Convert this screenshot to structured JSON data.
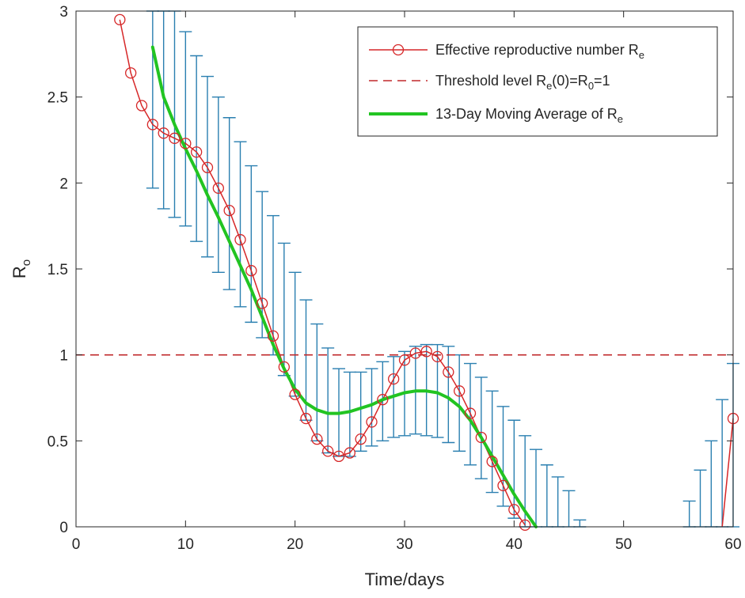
{
  "chart_data": {
    "type": "line",
    "xlabel": "Time/days",
    "ylabel": {
      "main": "R",
      "sub": "o"
    },
    "xlim": [
      0,
      60
    ],
    "ylim": [
      0,
      3
    ],
    "xticks": [
      0,
      10,
      20,
      30,
      40,
      50,
      60
    ],
    "yticks": [
      0,
      0.5,
      1,
      1.5,
      2,
      2.5,
      3
    ],
    "grid": false,
    "legend_position": "top-right",
    "legend": [
      {
        "pre": "Effective reproductive number R",
        "sub": "e"
      },
      {
        "pre": "Threshold level R",
        "sub": "e",
        "mid": "(0)=R",
        "sub2": "0",
        "post": "=1"
      },
      {
        "pre": "13-Day Moving Average of R",
        "sub": "e"
      }
    ],
    "colors": {
      "re": "#d62728",
      "threshold": "#c0292b",
      "moving_avg": "#22c422",
      "error_bars": "#2a7fb0"
    },
    "series": [
      {
        "name": "Effective reproductive number Re",
        "style": "solid-circle-markers",
        "x": [
          4,
          5,
          6,
          7,
          8,
          9,
          10,
          11,
          12,
          13,
          14,
          15,
          16,
          17,
          18,
          19,
          20,
          21,
          22,
          23,
          24,
          25,
          26,
          27,
          28,
          29,
          30,
          31,
          32,
          33,
          34,
          35,
          36,
          37,
          38,
          39,
          40,
          41
        ],
        "y": [
          2.95,
          2.64,
          2.45,
          2.34,
          2.29,
          2.26,
          2.23,
          2.18,
          2.09,
          1.97,
          1.84,
          1.67,
          1.49,
          1.3,
          1.11,
          0.93,
          0.77,
          0.63,
          0.51,
          0.44,
          0.41,
          0.43,
          0.51,
          0.61,
          0.74,
          0.86,
          0.97,
          1.01,
          1.02,
          0.99,
          0.9,
          0.79,
          0.66,
          0.52,
          0.38,
          0.24,
          0.1,
          0.01
        ]
      },
      {
        "name": "Effective reproductive number Re (late)",
        "style": "solid-circle-markers",
        "x": [
          59,
          60
        ],
        "y": [
          0,
          0.63
        ]
      },
      {
        "name": "Threshold level Re(0)=R0=1",
        "style": "dashed",
        "x": [
          0,
          60
        ],
        "y": [
          1,
          1
        ]
      },
      {
        "name": "13-Day Moving Average of Re",
        "style": "thick-solid",
        "x": [
          7,
          8,
          9,
          10,
          11,
          12,
          13,
          14,
          15,
          16,
          17,
          18,
          19,
          20,
          21,
          22,
          23,
          24,
          25,
          26,
          27,
          28,
          29,
          30,
          31,
          32,
          33,
          34,
          35,
          36,
          37,
          38,
          39,
          40,
          41,
          42
        ],
        "y": [
          2.79,
          2.5,
          2.34,
          2.2,
          2.07,
          1.93,
          1.8,
          1.66,
          1.52,
          1.38,
          1.22,
          1.06,
          0.92,
          0.8,
          0.72,
          0.68,
          0.66,
          0.66,
          0.67,
          0.69,
          0.71,
          0.74,
          0.76,
          0.78,
          0.79,
          0.79,
          0.78,
          0.75,
          0.7,
          0.62,
          0.52,
          0.41,
          0.3,
          0.19,
          0.09,
          0.0
        ]
      }
    ],
    "error_bars": {
      "x": [
        7,
        8,
        9,
        10,
        11,
        12,
        13,
        14,
        15,
        16,
        17,
        18,
        19,
        20,
        21,
        22,
        23,
        24,
        25,
        26,
        27,
        28,
        29,
        30,
        31,
        32,
        33,
        34,
        35,
        36,
        37,
        38,
        39,
        40,
        41,
        42,
        43,
        44,
        45,
        46,
        56,
        57,
        58,
        59,
        60
      ],
      "low": [
        1.97,
        1.85,
        1.8,
        1.75,
        1.66,
        1.57,
        1.48,
        1.38,
        1.28,
        1.19,
        1.1,
        1.0,
        0.88,
        0.76,
        0.62,
        0.5,
        0.43,
        0.41,
        0.41,
        0.44,
        0.47,
        0.5,
        0.52,
        0.53,
        0.54,
        0.53,
        0.52,
        0.49,
        0.44,
        0.36,
        0.28,
        0.2,
        0.12,
        0.05,
        0,
        0,
        0,
        0,
        0,
        0,
        0,
        0,
        0,
        0,
        0
      ],
      "high": [
        3.0,
        3.0,
        3.0,
        2.88,
        2.74,
        2.62,
        2.5,
        2.38,
        2.24,
        2.1,
        1.95,
        1.81,
        1.65,
        1.48,
        1.32,
        1.18,
        1.04,
        0.92,
        0.9,
        0.9,
        0.92,
        0.96,
        0.99,
        1.02,
        1.05,
        1.06,
        1.06,
        1.05,
        1.0,
        0.95,
        0.87,
        0.79,
        0.7,
        0.62,
        0.53,
        0.45,
        0.36,
        0.29,
        0.21,
        0.04,
        0.15,
        0.33,
        0.5,
        0.74,
        0.95
      ]
    }
  }
}
